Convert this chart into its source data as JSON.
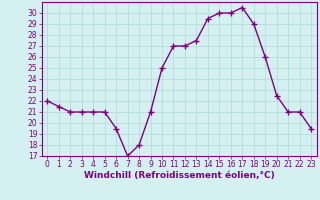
{
  "x": [
    0,
    1,
    2,
    3,
    4,
    5,
    6,
    7,
    8,
    9,
    10,
    11,
    12,
    13,
    14,
    15,
    16,
    17,
    18,
    19,
    20,
    21,
    22,
    23
  ],
  "y": [
    22,
    21.5,
    21,
    21,
    21,
    21,
    19.5,
    17,
    18,
    21,
    25,
    27,
    27,
    27.5,
    29.5,
    30,
    30,
    30.5,
    29,
    26,
    22.5,
    21,
    21,
    19.5
  ],
  "line_color": "#800080",
  "marker": "+",
  "marker_size": 4,
  "marker_lw": 1.0,
  "bg_color": "#d4f0f0",
  "grid_color": "#aed8d8",
  "xlabel": "Windchill (Refroidissement éolien,°C)",
  "xlabel_color": "#800080",
  "tick_color": "#800080",
  "spine_color": "#800080",
  "ylim": [
    17,
    31
  ],
  "xlim": [
    -0.5,
    23.5
  ],
  "yticks": [
    17,
    18,
    19,
    20,
    21,
    22,
    23,
    24,
    25,
    26,
    27,
    28,
    29,
    30
  ],
  "xticks": [
    0,
    1,
    2,
    3,
    4,
    5,
    6,
    7,
    8,
    9,
    10,
    11,
    12,
    13,
    14,
    15,
    16,
    17,
    18,
    19,
    20,
    21,
    22,
    23
  ],
  "tick_fontsize": 5.5,
  "xlabel_fontsize": 6.5,
  "line_width": 1.0,
  "linestyle": "-"
}
